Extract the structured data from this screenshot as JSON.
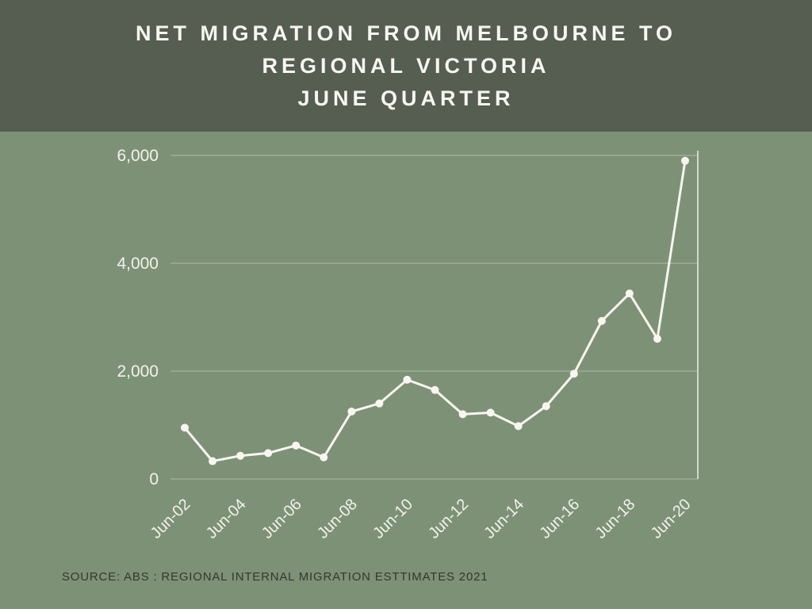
{
  "header": {
    "title_lines": [
      "NET MIGRATION FROM MELBOURNE TO",
      "REGIONAL VICTORIA",
      "JUNE QUARTER"
    ]
  },
  "footer": {
    "source": "SOURCE: ABS : REGIONAL INTERNAL MIGRATION ESTTIMATES 2021"
  },
  "colors": {
    "header_bg": "#565d51",
    "page_bg": "#7d9177",
    "line": "#f7f6f0",
    "grid": "rgba(255,255,255,0.38)",
    "axis_line": "rgba(255,255,255,0.85)",
    "axis_text": "#f3f2ec",
    "title_text": "#f7f6f0",
    "source_text": "#323830"
  },
  "chart_data": {
    "type": "line",
    "title": "NET MIGRATION FROM MELBOURNE TO REGIONAL VICTORIA - JUNE QUARTER",
    "x": [
      "Jun-02",
      "Jun-03",
      "Jun-04",
      "Jun-05",
      "Jun-06",
      "Jun-07",
      "Jun-08",
      "Jun-09",
      "Jun-10",
      "Jun-11",
      "Jun-12",
      "Jun-13",
      "Jun-14",
      "Jun-15",
      "Jun-16",
      "Jun-17",
      "Jun-18",
      "Jun-19",
      "Jun-20"
    ],
    "values": [
      950,
      330,
      430,
      480,
      620,
      400,
      1250,
      1400,
      1840,
      1650,
      1200,
      1230,
      980,
      1350,
      1950,
      2930,
      3440,
      2600,
      5900
    ],
    "x_tick_labels": [
      "Jun-02",
      "Jun-04",
      "Jun-06",
      "Jun-08",
      "Jun-10",
      "Jun-12",
      "Jun-14",
      "Jun-16",
      "Jun-18",
      "Jun-20"
    ],
    "y_ticks": [
      0,
      2000,
      4000,
      6000
    ],
    "y_tick_labels": [
      "0",
      "2,000",
      "4,000",
      "6,000"
    ],
    "ylim": [
      0,
      6000
    ],
    "xlabel": "",
    "ylabel": "",
    "grid": "horizontal",
    "legend": "none",
    "marker": "circle"
  }
}
